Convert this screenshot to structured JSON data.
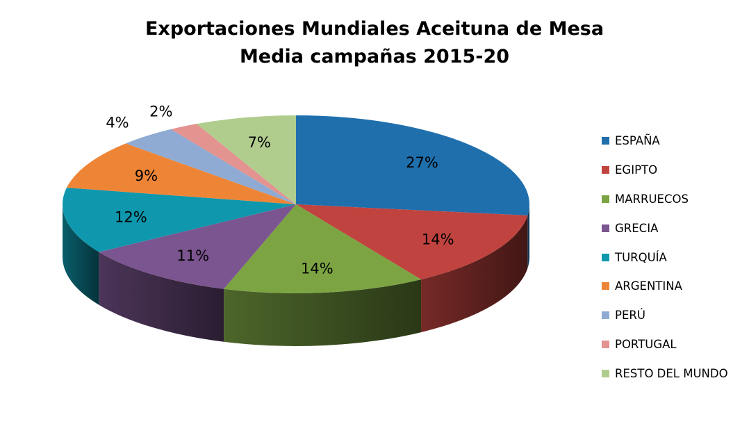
{
  "chart_data": {
    "type": "pie",
    "title": "Exportaciones Mundiales Aceituna de Mesa",
    "subtitle": "Media campañas 2015-20",
    "categories": [
      "ESPAÑA",
      "EGIPTO",
      "MARRUECOS",
      "GRECIA",
      "TURQUÍA",
      "ARGENTINA",
      "PERÚ",
      "PORTUGAL",
      "RESTO DEL MUNDO"
    ],
    "values": [
      27,
      14,
      14,
      11,
      12,
      9,
      4,
      2,
      7
    ],
    "value_labels": [
      "27%",
      "14%",
      "14%",
      "11%",
      "12%",
      "9%",
      "4%",
      "2%",
      "7%"
    ],
    "colors": [
      "#1f6fad",
      "#c0433f",
      "#7ca443",
      "#7b558f",
      "#0f97ad",
      "#ee8536",
      "#8fabd4",
      "#e39390",
      "#b1cd8e"
    ],
    "style": "3d",
    "legend_position": "right"
  }
}
